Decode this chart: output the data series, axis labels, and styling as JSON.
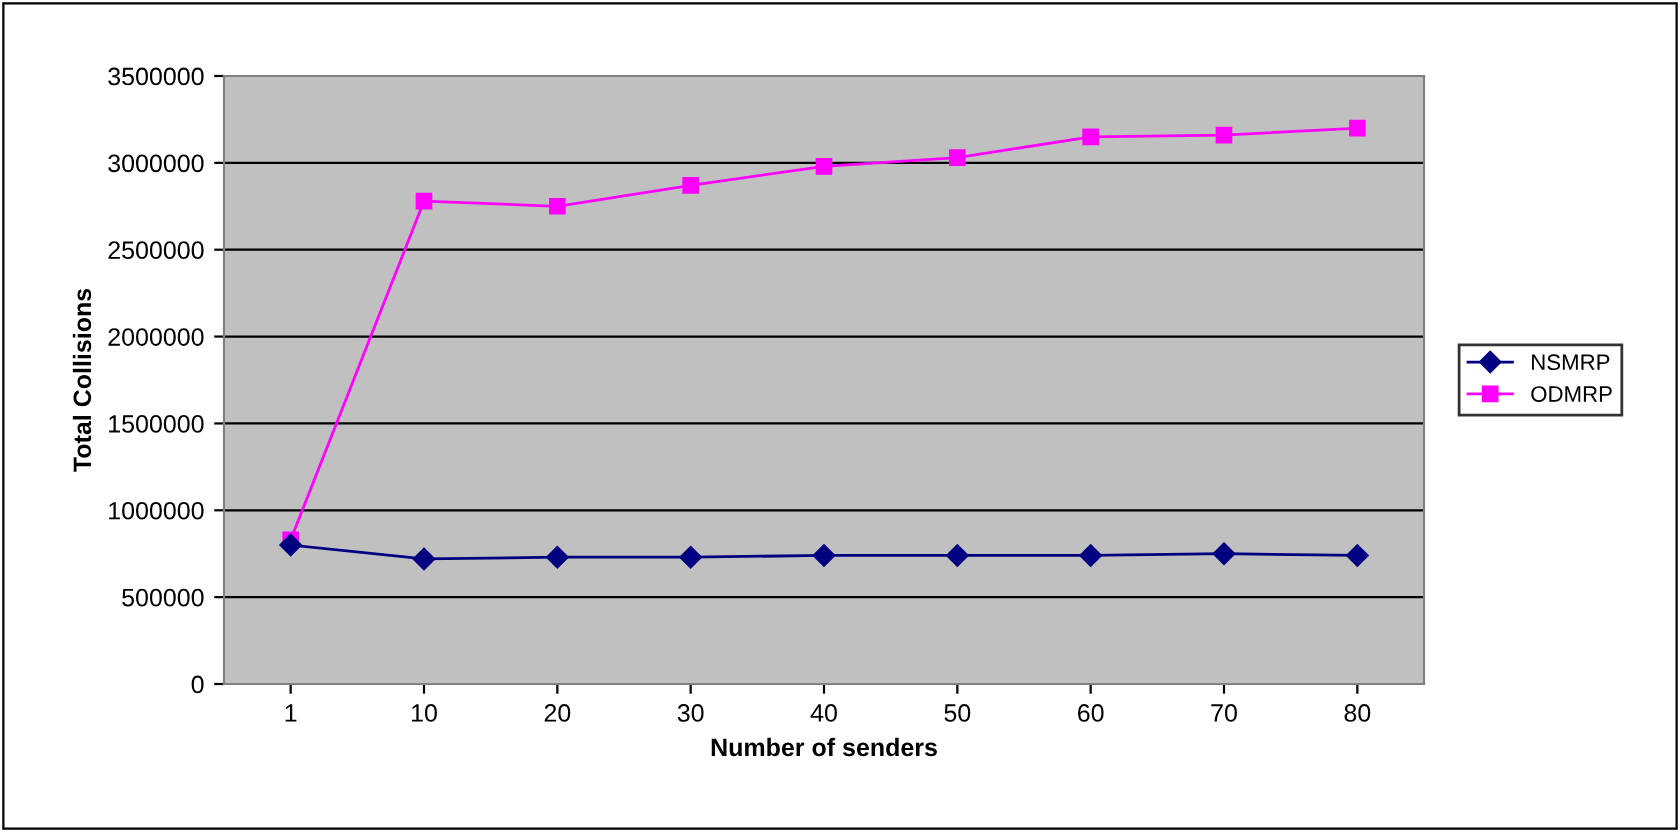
{
  "chart_data": {
    "type": "line",
    "xlabel": "Number of senders",
    "ylabel": "Total Collisions",
    "categories": [
      "1",
      "10",
      "20",
      "30",
      "40",
      "50",
      "60",
      "70",
      "80"
    ],
    "series": [
      {
        "name": "NSMRP",
        "color": "#000080",
        "marker": "diamond",
        "values": [
          800000,
          720000,
          730000,
          730000,
          740000,
          740000,
          740000,
          750000,
          740000
        ]
      },
      {
        "name": "ODMRP",
        "color": "#ff00ff",
        "marker": "square",
        "values": [
          830000,
          2780000,
          2750000,
          2870000,
          2980000,
          3030000,
          3150000,
          3160000,
          3200000
        ]
      }
    ],
    "ylim": [
      0,
      3500000
    ],
    "yticks": [
      0,
      500000,
      1000000,
      1500000,
      2000000,
      2500000,
      3000000,
      3500000
    ],
    "grid": "y",
    "legend": "right",
    "line_style": "solid"
  }
}
